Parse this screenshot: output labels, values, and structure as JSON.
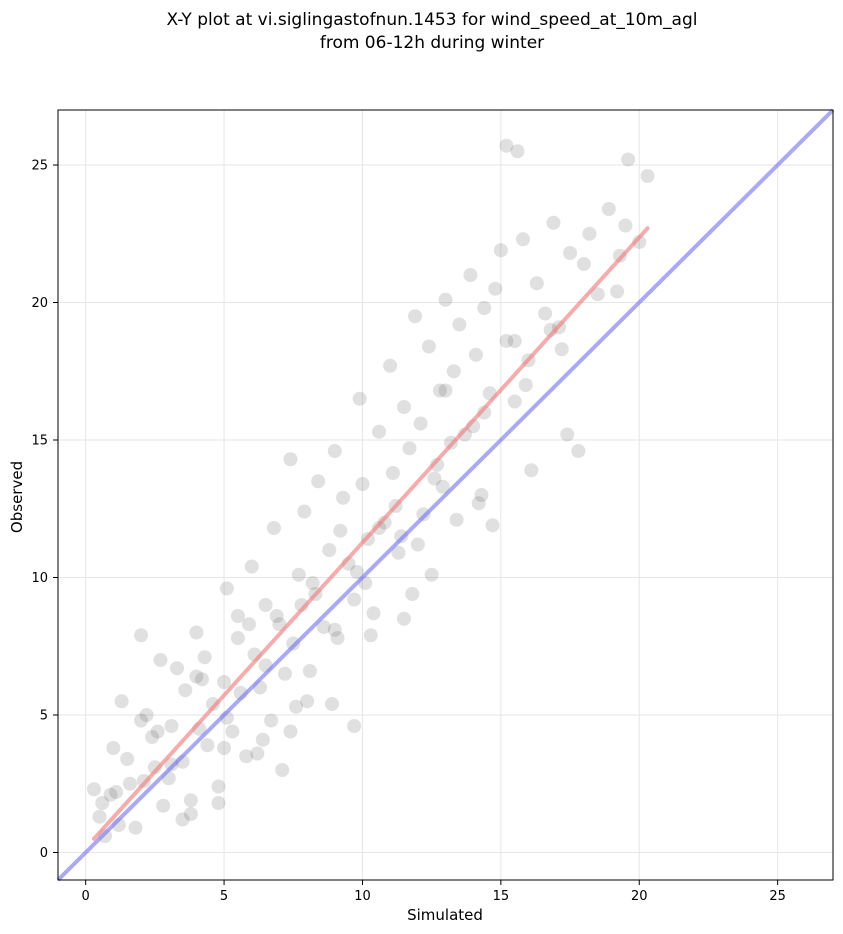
{
  "chart_data": {
    "type": "scatter",
    "title_line1": "X-Y plot at vi.siglingastofnun.1453 for wind_speed_at_10m_agl",
    "title_line2": "from 06-12h during winter",
    "xlabel": "Simulated",
    "ylabel": "Observed",
    "xlim": [
      -1,
      27
    ],
    "ylim": [
      -1,
      27
    ],
    "xticks": [
      0,
      5,
      10,
      15,
      20,
      25
    ],
    "yticks": [
      0,
      5,
      10,
      15,
      20,
      25
    ],
    "grid": true,
    "colors": {
      "points": "#555555",
      "fit_line": "#f08080",
      "identity_line": "#7070f0"
    },
    "fit_line": {
      "x": [
        0.3,
        20.3
      ],
      "y": [
        0.5,
        22.7
      ]
    },
    "identity_line": {
      "x": [
        -1,
        27
      ],
      "y": [
        -1,
        27
      ]
    },
    "points": {
      "x": [
        0.3,
        0.5,
        0.7,
        0.9,
        1.0,
        1.2,
        1.3,
        1.5,
        1.6,
        1.8,
        2.0,
        2.1,
        2.2,
        2.4,
        2.5,
        2.7,
        2.8,
        3.0,
        3.1,
        3.3,
        3.5,
        3.6,
        3.8,
        4.0,
        4.1,
        4.3,
        4.4,
        4.6,
        4.8,
        5.0,
        5.1,
        5.3,
        5.5,
        5.6,
        5.8,
        6.0,
        6.1,
        6.3,
        6.5,
        6.7,
        6.8,
        7.0,
        7.2,
        7.4,
        7.5,
        7.7,
        7.9,
        8.1,
        8.2,
        8.4,
        8.6,
        8.8,
        9.0,
        9.1,
        9.3,
        9.5,
        9.7,
        9.9,
        10.0,
        10.2,
        10.4,
        10.6,
        10.8,
        11.0,
        11.1,
        11.3,
        11.5,
        11.7,
        11.9,
        12.1,
        12.2,
        12.4,
        12.6,
        12.8,
        13.0,
        13.2,
        13.3,
        13.5,
        13.7,
        13.9,
        14.1,
        14.3,
        14.4,
        14.6,
        14.8,
        15.0,
        15.2,
        15.5,
        15.8,
        16.0,
        16.3,
        16.6,
        16.9,
        17.2,
        17.5,
        17.8,
        18.2,
        18.5,
        18.9,
        19.3,
        19.6,
        20.0,
        20.3,
        15.2,
        15.6,
        19.5,
        5.1,
        2.0,
        3.1,
        4.2,
        6.5,
        7.8,
        9.2,
        10.6,
        12.0,
        13.4,
        14.7,
        6.2,
        8.0,
        11.5,
        13.0,
        3.5,
        4.8,
        7.1,
        9.7,
        12.5,
        14.2,
        16.1,
        17.4,
        8.9,
        10.3,
        11.8,
        5.9,
        7.4,
        2.6,
        1.1,
        0.6,
        4.0,
        5.5,
        6.9,
        8.3,
        9.8,
        11.2,
        12.7,
        14.0,
        15.5,
        16.8,
        18.0,
        19.2,
        3.8,
        5.0,
        6.4,
        7.6,
        9.0,
        10.1,
        11.4,
        12.9,
        14.4,
        15.9,
        17.1
      ],
      "y": [
        2.3,
        1.3,
        0.6,
        2.1,
        3.8,
        1.0,
        5.5,
        3.4,
        2.5,
        0.9,
        7.9,
        2.6,
        5.0,
        4.2,
        3.1,
        7.0,
        1.7,
        2.7,
        4.6,
        6.7,
        3.3,
        5.9,
        1.4,
        8.0,
        4.5,
        7.1,
        3.9,
        5.4,
        2.4,
        6.2,
        9.6,
        4.4,
        8.6,
        5.8,
        3.5,
        10.4,
        7.2,
        6.0,
        9.0,
        4.8,
        11.8,
        8.3,
        6.5,
        14.3,
        7.6,
        10.1,
        12.4,
        6.6,
        9.8,
        13.5,
        8.2,
        11.0,
        14.6,
        7.8,
        12.9,
        10.5,
        9.2,
        16.5,
        13.4,
        11.4,
        8.7,
        15.3,
        12.0,
        17.7,
        13.8,
        10.9,
        16.2,
        14.7,
        19.5,
        15.6,
        12.3,
        18.4,
        13.6,
        16.8,
        20.1,
        14.9,
        17.5,
        19.2,
        15.2,
        21.0,
        18.1,
        13.0,
        19.8,
        16.7,
        20.5,
        21.9,
        18.6,
        16.4,
        22.3,
        17.9,
        20.7,
        19.6,
        22.9,
        18.3,
        21.8,
        14.6,
        22.5,
        20.3,
        23.4,
        21.7,
        25.2,
        22.2,
        24.6,
        25.7,
        25.5,
        22.8,
        4.9,
        4.8,
        3.2,
        6.3,
        6.8,
        9.0,
        11.7,
        11.8,
        11.2,
        12.1,
        11.9,
        3.6,
        5.5,
        8.5,
        16.8,
        1.2,
        1.8,
        3.0,
        4.6,
        10.1,
        12.7,
        13.9,
        15.2,
        5.4,
        7.9,
        9.4,
        8.3,
        4.4,
        4.4,
        2.2,
        1.8,
        6.4,
        7.8,
        8.6,
        9.4,
        10.2,
        12.6,
        14.1,
        15.5,
        18.6,
        19.0,
        21.4,
        20.4,
        1.9,
        3.8,
        4.1,
        5.3,
        8.1,
        9.8,
        11.5,
        13.3,
        16.0,
        17.0,
        19.1
      ]
    }
  }
}
